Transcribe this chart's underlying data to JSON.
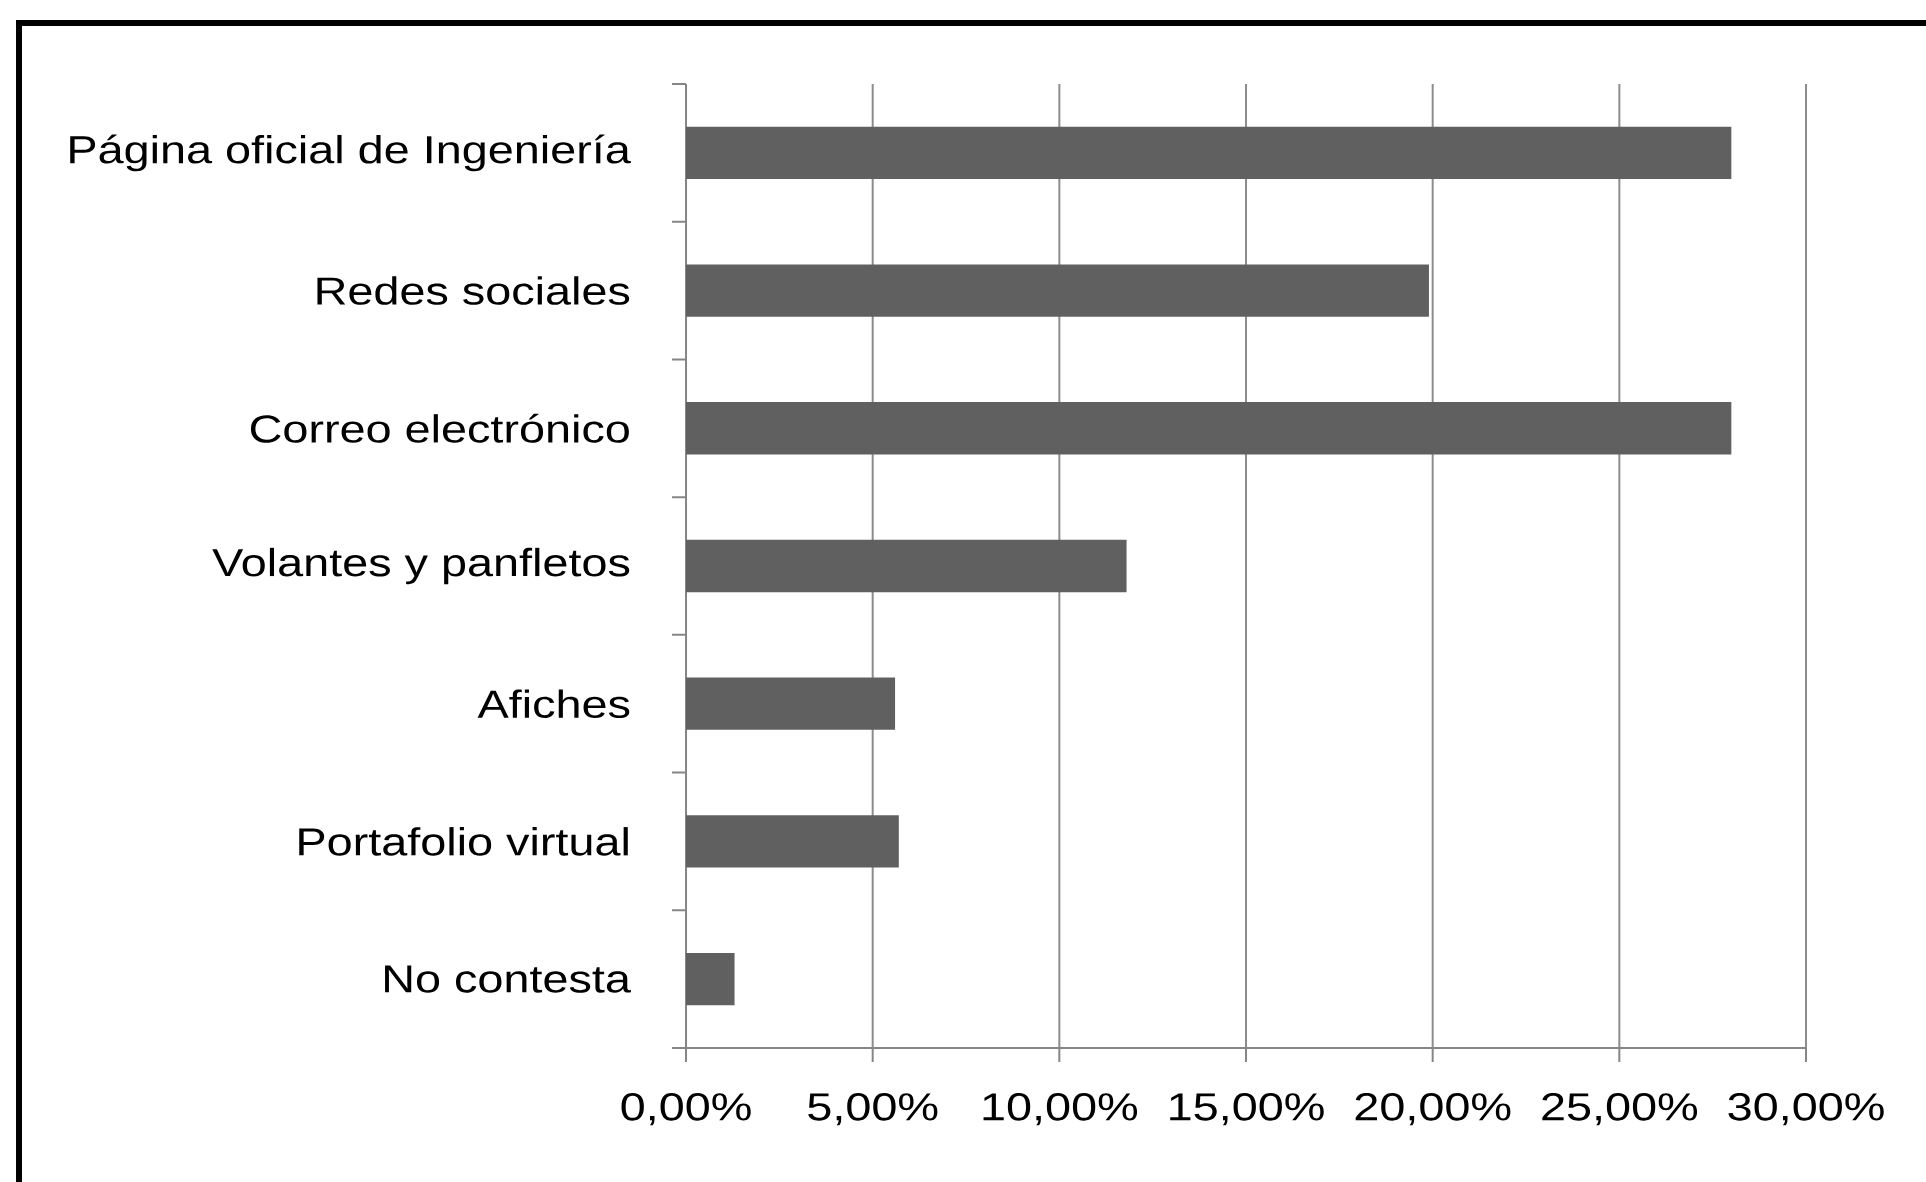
{
  "chart_data": {
    "type": "bar",
    "orientation": "horizontal",
    "categories": [
      "Página oficial de Ingeniería",
      "Redes sociales",
      "Correo electrónico",
      "Volantes y panfletos",
      "Afiches",
      "Portafolio virtual",
      "No contesta"
    ],
    "values": [
      28,
      19.9,
      28,
      11.8,
      5.6,
      5.7,
      1.3
    ],
    "color": "#606060",
    "xlim": [
      0,
      30
    ],
    "xticks": [
      {
        "value": 0,
        "label": "0,00%"
      },
      {
        "value": 5,
        "label": "5,00%"
      },
      {
        "value": 10,
        "label": "10,00%"
      },
      {
        "value": 15,
        "label": "15,00%"
      },
      {
        "value": 20,
        "label": "20,00%"
      },
      {
        "value": 25,
        "label": "25,00%"
      },
      {
        "value": 30,
        "label": "30,00%"
      }
    ],
    "grid": "x"
  }
}
